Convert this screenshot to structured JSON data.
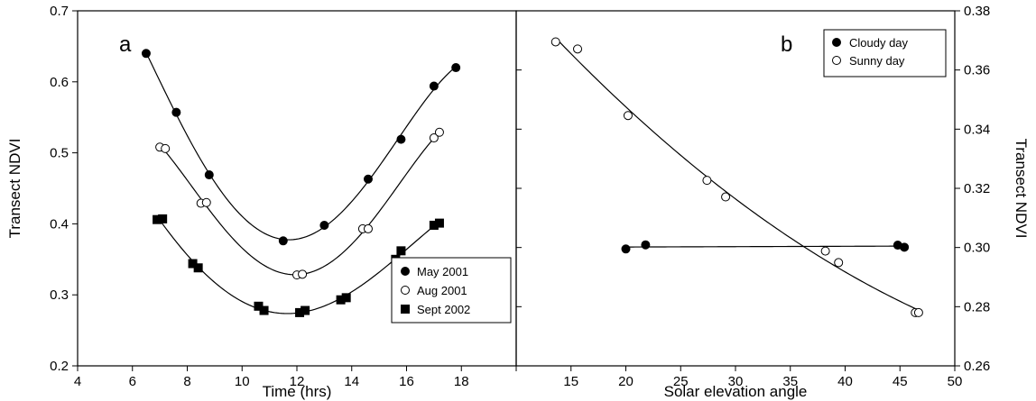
{
  "chart_data": [
    {
      "panel": "a",
      "type": "scatter",
      "xlabel": "Time (hrs)",
      "ylabel": "Transect NDVI",
      "xlim": [
        4,
        20
      ],
      "ylim": [
        0.2,
        0.7
      ],
      "xticks": [
        "4",
        "6",
        "8",
        "10",
        "12",
        "14",
        "16",
        "18"
      ],
      "yticks": [
        "0.2",
        "0.3",
        "0.4",
        "0.5",
        "0.6",
        "0.7"
      ],
      "legend_position": "bottom-right",
      "fit": "smooth curve per series",
      "series": [
        {
          "name": "May 2001",
          "marker": "filled-circle",
          "points": [
            [
              6.5,
              0.64
            ],
            [
              7.6,
              0.557
            ],
            [
              8.8,
              0.469
            ],
            [
              11.5,
              0.376
            ],
            [
              13.0,
              0.398
            ],
            [
              14.6,
              0.463
            ],
            [
              15.8,
              0.519
            ],
            [
              17.0,
              0.594
            ],
            [
              17.8,
              0.62
            ]
          ]
        },
        {
          "name": "Aug 2001",
          "marker": "open-circle",
          "points": [
            [
              7.0,
              0.508
            ],
            [
              7.2,
              0.506
            ],
            [
              8.5,
              0.429
            ],
            [
              8.7,
              0.43
            ],
            [
              12.0,
              0.328
            ],
            [
              12.2,
              0.329
            ],
            [
              14.4,
              0.393
            ],
            [
              14.6,
              0.393
            ],
            [
              17.0,
              0.521
            ],
            [
              17.2,
              0.529
            ]
          ]
        },
        {
          "name": "Sept 2002",
          "marker": "filled-square",
          "points": [
            [
              6.9,
              0.406
            ],
            [
              7.1,
              0.407
            ],
            [
              8.2,
              0.344
            ],
            [
              8.4,
              0.338
            ],
            [
              10.6,
              0.284
            ],
            [
              10.8,
              0.278
            ],
            [
              12.1,
              0.275
            ],
            [
              12.3,
              0.278
            ],
            [
              13.6,
              0.293
            ],
            [
              13.8,
              0.296
            ],
            [
              15.6,
              0.35
            ],
            [
              15.8,
              0.362
            ],
            [
              17.0,
              0.398
            ],
            [
              17.2,
              0.401
            ]
          ]
        }
      ]
    },
    {
      "panel": "b",
      "type": "scatter",
      "xlabel": "Solar elevation angle",
      "ylabel": "Transect NDVI",
      "xlim": [
        10,
        50
      ],
      "ylim": [
        0.26,
        0.38
      ],
      "xticks": [
        "10",
        "15",
        "20",
        "25",
        "30",
        "35",
        "40",
        "45",
        "50"
      ],
      "yticks": [
        "0.26",
        "0.28",
        "0.30",
        "0.32",
        "0.34",
        "0.36",
        "0.38"
      ],
      "legend_position": "top-right",
      "fit": "linear for Cloudy day, curve for Sunny day",
      "series": [
        {
          "name": "Cloudy day",
          "marker": "filled-circle",
          "points": [
            [
              20.0,
              0.2995
            ],
            [
              21.8,
              0.3009
            ],
            [
              44.8,
              0.3008
            ],
            [
              45.4,
              0.3001
            ]
          ]
        },
        {
          "name": "Sunny day",
          "marker": "open-circle",
          "points": [
            [
              13.6,
              0.3695
            ],
            [
              15.6,
              0.3671
            ],
            [
              20.2,
              0.3446
            ],
            [
              27.4,
              0.3227
            ],
            [
              29.1,
              0.3171
            ],
            [
              38.2,
              0.2988
            ],
            [
              39.4,
              0.2949
            ],
            [
              46.4,
              0.278
            ],
            [
              46.7,
              0.278
            ]
          ]
        }
      ]
    }
  ]
}
